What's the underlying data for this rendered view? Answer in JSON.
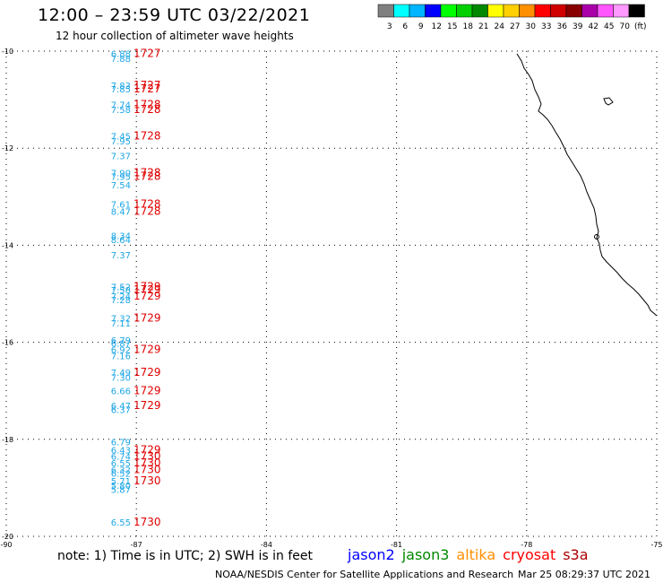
{
  "header": {
    "title": "12:00 – 23:59 UTC 03/22/2021",
    "subtitle": "12 hour collection of altimeter wave heights"
  },
  "legend": {
    "colors": [
      "#808080",
      "#00ffff",
      "#00b4ff",
      "#0000ff",
      "#00ff00",
      "#00d000",
      "#008800",
      "#ffff00",
      "#ffd000",
      "#ff9000",
      "#ff0000",
      "#d00000",
      "#880000",
      "#aa00aa",
      "#ff55ff",
      "#ff99ff",
      "#000000"
    ],
    "labels": [
      "3",
      "6",
      "9",
      "12",
      "15",
      "18",
      "21",
      "24",
      "27",
      "30",
      "33",
      "36",
      "39",
      "42",
      "45",
      "70",
      "(ft)"
    ]
  },
  "axes": {
    "lat_labels": [
      "-10",
      "-12",
      "-14",
      "-16",
      "-18",
      "-20"
    ],
    "lon_labels": [
      "-90",
      "-87",
      "-84",
      "-81",
      "-78",
      "-75"
    ]
  },
  "observations": [
    {
      "swh": "6.88",
      "time": "1727",
      "lat": -10.05
    },
    {
      "swh": "7.88",
      "time": "",
      "lat": -10.15
    },
    {
      "swh": "7.83",
      "time": "1727",
      "lat": -10.7
    },
    {
      "swh": "7.85",
      "time": "1727",
      "lat": -10.78
    },
    {
      "swh": "7.74",
      "time": "1728",
      "lat": -11.1
    },
    {
      "swh": "7.58",
      "time": "1728",
      "lat": -11.2
    },
    {
      "swh": "7.45",
      "time": "1728",
      "lat": -11.75
    },
    {
      "swh": "7.95",
      "time": "",
      "lat": -11.85
    },
    {
      "swh": "7.37",
      "time": "",
      "lat": -12.15
    },
    {
      "swh": "7.90",
      "time": "1728",
      "lat": -12.5
    },
    {
      "swh": "7.95",
      "time": "1728",
      "lat": -12.58
    },
    {
      "swh": "7.54",
      "time": "",
      "lat": -12.75
    },
    {
      "swh": "7.61",
      "time": "1728",
      "lat": -13.15
    },
    {
      "swh": "8.47",
      "time": "1728",
      "lat": -13.3
    },
    {
      "swh": "8.34",
      "time": "",
      "lat": -13.8
    },
    {
      "swh": "8.64",
      "time": "",
      "lat": -13.88
    },
    {
      "swh": "7.37",
      "time": "",
      "lat": -14.2
    },
    {
      "swh": "7.52",
      "time": "1729",
      "lat": -14.85
    },
    {
      "swh": "7.58",
      "time": "1729",
      "lat": -14.92
    },
    {
      "swh": "7.24",
      "time": "1729",
      "lat": -15.05
    },
    {
      "swh": "7.28",
      "time": "",
      "lat": -15.12
    },
    {
      "swh": "7.32",
      "time": "1729",
      "lat": -15.5
    },
    {
      "swh": "7.11",
      "time": "",
      "lat": -15.6
    },
    {
      "swh": "6.79",
      "time": "",
      "lat": -15.95
    },
    {
      "swh": "6.87",
      "time": "",
      "lat": -16.02
    },
    {
      "swh": "6.92",
      "time": "1729",
      "lat": -16.15
    },
    {
      "swh": "7.16",
      "time": "",
      "lat": -16.28
    },
    {
      "swh": "7.49",
      "time": "1729",
      "lat": -16.62
    },
    {
      "swh": "7.30",
      "time": "",
      "lat": -16.72
    },
    {
      "swh": "6.66",
      "time": "1729",
      "lat": -17.0
    },
    {
      "swh": "6.47",
      "time": "1729",
      "lat": -17.3
    },
    {
      "swh": "6.37",
      "time": "",
      "lat": -17.38
    },
    {
      "swh": "6.79",
      "time": "",
      "lat": -18.05
    },
    {
      "swh": "6.43",
      "time": "1729",
      "lat": -18.22
    },
    {
      "swh": "6.74",
      "time": "1730",
      "lat": -18.35
    },
    {
      "swh": "6.55",
      "time": "1730",
      "lat": -18.48
    },
    {
      "swh": "6.32",
      "time": "1730",
      "lat": -18.62
    },
    {
      "swh": "6.52",
      "time": "",
      "lat": -18.7
    },
    {
      "swh": "5.71",
      "time": "1730",
      "lat": -18.85
    },
    {
      "swh": "5.80",
      "time": "",
      "lat": -18.95
    },
    {
      "swh": "5.87",
      "time": "",
      "lat": -19.03
    },
    {
      "swh": "6.55",
      "time": "1730",
      "lat": -19.7
    }
  ],
  "obs_color_swh": "#1ea6e6",
  "obs_color_time": "#e00000",
  "footer": {
    "note": "note:  1) Time is in UTC;  2) SWH is in feet",
    "missions": [
      {
        "name": "jason2",
        "color": "#0000ff"
      },
      {
        "name": "jason3",
        "color": "#008800"
      },
      {
        "name": "altika",
        "color": "#ff9000"
      },
      {
        "name": "cryosat",
        "color": "#ff0000"
      },
      {
        "name": "s3a",
        "color": "#aa0000"
      }
    ],
    "credit": "NOAA/NESDIS Center for Satellite Applications and Research",
    "timestamp": "Mar 25 08:29:37 UTC 2021"
  }
}
